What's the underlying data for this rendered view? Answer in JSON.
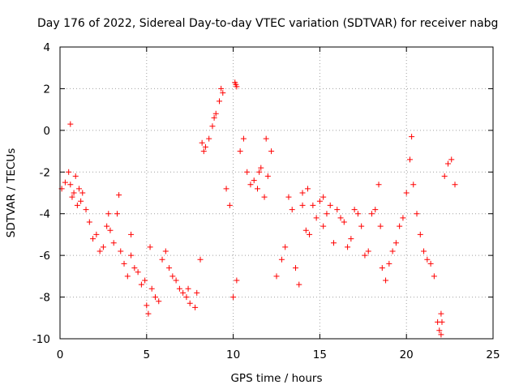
{
  "chart_data": {
    "type": "scatter",
    "title": "Day 176 of 2022, Sidereal Day-to-day VTEC variation (SDTVAR) for receiver nabg",
    "xlabel": "GPS time / hours",
    "ylabel": "SDTVAR / TECUs",
    "xlim": [
      0,
      25
    ],
    "ylim": [
      -10,
      4
    ],
    "xticks": [
      0,
      5,
      10,
      15,
      20,
      25
    ],
    "yticks": [
      -10,
      -8,
      -6,
      -4,
      -2,
      0,
      2,
      4
    ],
    "grid": true,
    "marker": "+",
    "series_color": "#ff0000",
    "series": [
      {
        "name": "SDTVAR",
        "x": [
          0.1,
          0.3,
          0.5,
          0.6,
          0.7,
          0.8,
          0.9,
          1.0,
          1.1,
          1.2,
          1.3,
          1.5,
          1.7,
          1.9,
          2.1,
          2.3,
          2.5,
          2.7,
          2.9,
          3.1,
          3.3,
          3.5,
          3.7,
          3.9,
          4.1,
          4.3,
          4.5,
          4.7,
          4.9,
          5.0,
          5.1,
          5.3,
          5.5,
          5.7,
          5.9,
          6.1,
          6.3,
          6.5,
          6.7,
          6.9,
          7.1,
          7.3,
          7.5,
          7.8,
          8.1,
          8.2,
          8.4,
          8.6,
          8.8,
          9.0,
          9.2,
          9.4,
          9.6,
          9.8,
          10.0,
          10.2,
          10.4,
          10.6,
          10.8,
          11.0,
          11.2,
          11.4,
          11.6,
          11.8,
          12.0,
          12.2,
          12.5,
          12.8,
          13.0,
          13.2,
          13.4,
          13.6,
          13.8,
          14.0,
          14.2,
          14.4,
          14.6,
          14.8,
          15.0,
          15.2,
          15.4,
          15.6,
          15.8,
          16.0,
          16.2,
          16.4,
          16.6,
          16.8,
          17.0,
          17.2,
          17.4,
          17.6,
          17.8,
          18.0,
          18.2,
          18.4,
          18.6,
          18.8,
          19.0,
          19.2,
          19.4,
          19.6,
          19.8,
          20.0,
          20.2,
          20.4,
          20.6,
          20.8,
          21.0,
          21.2,
          21.4,
          21.6,
          21.8,
          22.0,
          22.2,
          22.4,
          22.6,
          22.8,
          0.6,
          8.3,
          8.9,
          9.3,
          10.1,
          10.15,
          10.2,
          11.5,
          11.9,
          14.0,
          14.3,
          15.2,
          18.5,
          20.3,
          21.9,
          22.0,
          22.05,
          5.2,
          4.1,
          7.4,
          7.9,
          3.4,
          2.8
        ],
        "y": [
          -2.8,
          -2.5,
          -2.0,
          -2.6,
          -3.2,
          -3.0,
          -2.2,
          -3.6,
          -2.8,
          -3.4,
          -3.0,
          -3.8,
          -4.4,
          -5.2,
          -5.0,
          -5.8,
          -5.6,
          -4.6,
          -4.8,
          -5.4,
          -4.0,
          -5.8,
          -6.4,
          -7.0,
          -6.0,
          -6.6,
          -6.8,
          -7.4,
          -7.2,
          -8.4,
          -8.8,
          -7.6,
          -8.0,
          -8.2,
          -6.2,
          -5.8,
          -6.6,
          -7.0,
          -7.2,
          -7.6,
          -7.8,
          -8.0,
          -8.3,
          -8.5,
          -6.2,
          -0.6,
          -0.8,
          -0.4,
          0.2,
          0.8,
          1.4,
          1.8,
          -2.8,
          -3.6,
          -8.0,
          -7.2,
          -1.0,
          -0.4,
          -2.0,
          -2.6,
          -2.4,
          -2.8,
          -1.8,
          -3.2,
          -2.2,
          -1.0,
          -7.0,
          -6.2,
          -5.6,
          -3.2,
          -3.8,
          -6.6,
          -7.4,
          -3.0,
          -4.8,
          -5.0,
          -3.6,
          -4.2,
          -3.4,
          -4.6,
          -4.0,
          -3.6,
          -5.4,
          -3.8,
          -4.2,
          -4.4,
          -5.6,
          -5.2,
          -3.8,
          -4.0,
          -4.6,
          -6.0,
          -5.8,
          -4.0,
          -3.8,
          -2.6,
          -6.6,
          -7.2,
          -6.4,
          -5.8,
          -5.4,
          -4.6,
          -4.2,
          -3.0,
          -1.4,
          -2.6,
          -4.0,
          -5.0,
          -5.8,
          -6.2,
          -6.4,
          -7.0,
          -9.2,
          -8.8,
          -2.2,
          -1.6,
          -1.4,
          -2.6,
          0.3,
          -1.0,
          0.6,
          2.0,
          2.3,
          2.2,
          2.1,
          -2.0,
          -0.4,
          -3.6,
          -2.8,
          -3.2,
          -4.6,
          -0.3,
          -9.6,
          -9.8,
          -9.2,
          -5.6,
          -5.0,
          -7.6,
          -7.8,
          -3.1,
          -4.0
        ]
      }
    ]
  }
}
